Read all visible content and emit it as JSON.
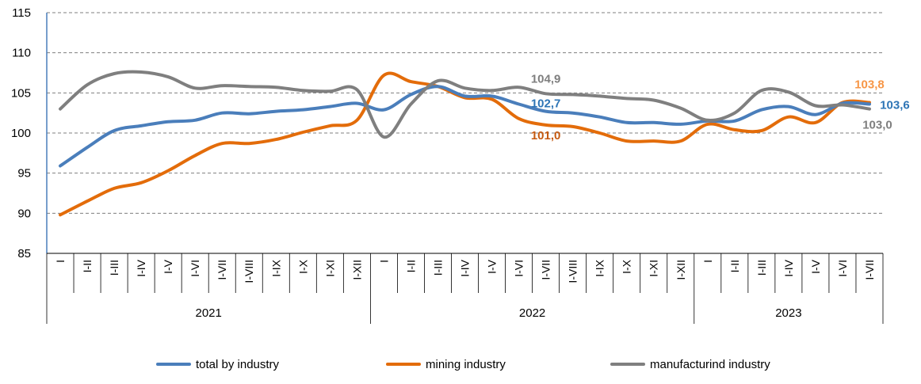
{
  "chart_data": {
    "type": "line",
    "ylim": [
      85,
      115
    ],
    "yticks": [
      85,
      90,
      95,
      100,
      105,
      110,
      115
    ],
    "grid": true,
    "legend_position": "bottom",
    "categories": [
      "I",
      "I-II",
      "I-III",
      "I-IV",
      "I-V",
      "I-VI",
      "I-VII",
      "I-VIII",
      "I-IX",
      "I-X",
      "I-XI",
      "I-XII",
      "I",
      "I-II",
      "I-III",
      "I-IV",
      "I-V",
      "I-VI",
      "I-VII",
      "I-VIII",
      "I-IX",
      "I-X",
      "I-XI",
      "I-XII",
      "I",
      "I-II",
      "I-III",
      "I-IV",
      "I-V",
      "I-VI",
      "I-VII"
    ],
    "years": [
      {
        "label": "2021",
        "start": 0,
        "end": 12
      },
      {
        "label": "2022",
        "start": 12,
        "end": 24
      },
      {
        "label": "2023",
        "start": 24,
        "end": 31
      }
    ],
    "series": [
      {
        "name": "total by industry",
        "color": "#4a7ebb",
        "values": [
          95.9,
          98.2,
          100.3,
          100.9,
          101.4,
          101.6,
          102.5,
          102.4,
          102.7,
          102.9,
          103.3,
          103.7,
          102.9,
          104.8,
          105.8,
          104.6,
          104.6,
          103.6,
          102.7,
          102.5,
          102.0,
          101.3,
          101.3,
          101.1,
          101.5,
          101.5,
          102.9,
          103.3,
          102.3,
          103.7,
          103.6
        ]
      },
      {
        "name": "mining industry",
        "color": "#e36c0a",
        "values": [
          89.8,
          91.5,
          93.1,
          93.8,
          95.3,
          97.2,
          98.7,
          98.7,
          99.2,
          100.1,
          100.9,
          101.6,
          107.2,
          106.4,
          105.8,
          104.4,
          104.2,
          101.8,
          101.0,
          100.8,
          100.0,
          99.0,
          99.0,
          99.0,
          101.1,
          100.4,
          100.3,
          102.0,
          101.3,
          103.8,
          103.8
        ]
      },
      {
        "name": "manufacturind industry",
        "color": "#7f7f7f",
        "values": [
          103.0,
          106.0,
          107.4,
          107.6,
          107.0,
          105.6,
          105.9,
          105.8,
          105.7,
          105.3,
          105.2,
          105.4,
          99.5,
          103.6,
          106.5,
          105.6,
          105.3,
          105.7,
          104.9,
          104.8,
          104.6,
          104.3,
          104.1,
          103.1,
          101.6,
          102.5,
          105.3,
          105.1,
          103.4,
          103.5,
          103.0
        ]
      }
    ],
    "annotations": [
      {
        "text": "104,9",
        "series": 2,
        "index": 18,
        "color": "#7f7f7f"
      },
      {
        "text": "102,7",
        "series": 0,
        "index": 18,
        "color": "#2e75b6"
      },
      {
        "text": "101,0",
        "series": 1,
        "index": 18,
        "color": "#c55a11"
      },
      {
        "text": "103,8",
        "series": 1,
        "index": 30,
        "color": "#f79646"
      },
      {
        "text": "103,6",
        "series": 0,
        "index": 30,
        "color": "#2e75b6"
      },
      {
        "text": "103,0",
        "series": 2,
        "index": 30,
        "color": "#7f7f7f"
      }
    ]
  }
}
